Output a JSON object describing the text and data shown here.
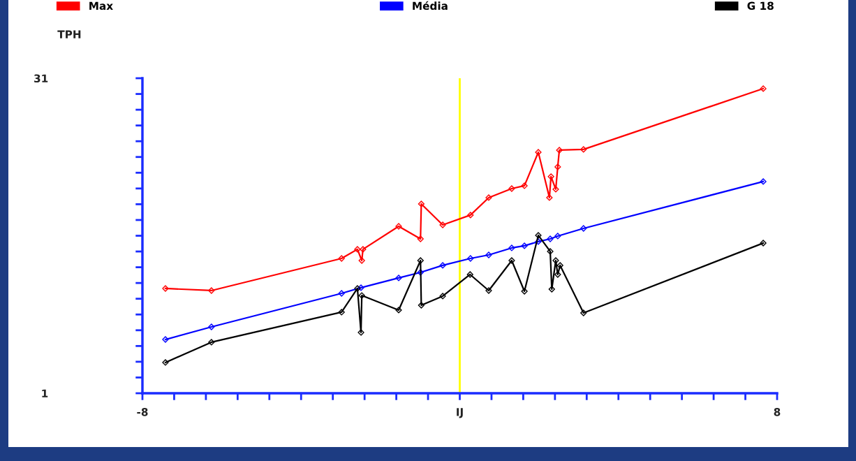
{
  "chart_data": {
    "type": "line",
    "ylabel": "TPH",
    "legend": "top",
    "marker": "diamond",
    "line_style": "solid",
    "grid": false,
    "xlim": [
      -8,
      8
    ],
    "xticks": [
      {
        "value": -8,
        "label": "-8"
      },
      {
        "value": -7.2,
        "label": null
      },
      {
        "value": -6.4,
        "label": null
      },
      {
        "value": -5.6,
        "label": null
      },
      {
        "value": -4.8,
        "label": null
      },
      {
        "value": -4,
        "label": null
      },
      {
        "value": -3.2,
        "label": null
      },
      {
        "value": -2.4,
        "label": null
      },
      {
        "value": -1.6,
        "label": null
      },
      {
        "value": -0.8,
        "label": null
      },
      {
        "value": 0,
        "label": "IJ"
      },
      {
        "value": 0.8,
        "label": null
      },
      {
        "value": 1.6,
        "label": null
      },
      {
        "value": 2.4,
        "label": null
      },
      {
        "value": 3.2,
        "label": null
      },
      {
        "value": 4,
        "label": null
      },
      {
        "value": 4.8,
        "label": null
      },
      {
        "value": 5.6,
        "label": null
      },
      {
        "value": 6.4,
        "label": null
      },
      {
        "value": 7.2,
        "label": null
      },
      {
        "value": 8,
        "label": "8"
      }
    ],
    "ylim": [
      1,
      31
    ],
    "yticks": [
      1,
      {
        "value": 2.5,
        "label": null
      },
      {
        "value": 4,
        "label": null
      },
      {
        "value": 5.5,
        "label": null
      },
      {
        "value": 7,
        "label": null
      },
      {
        "value": 8.5,
        "label": null
      },
      {
        "value": 10,
        "label": null
      },
      {
        "value": 11.5,
        "label": null
      },
      {
        "value": 13,
        "label": null
      },
      {
        "value": 14.5,
        "label": null
      },
      {
        "value": 16,
        "label": null
      },
      {
        "value": 17.5,
        "label": null
      },
      {
        "value": 19,
        "label": null
      },
      {
        "value": 20.5,
        "label": null
      },
      {
        "value": 22,
        "label": null
      },
      {
        "value": 23.5,
        "label": null
      },
      {
        "value": 25,
        "label": null
      },
      {
        "value": 26.5,
        "label": null
      },
      {
        "value": 28,
        "label": null
      },
      {
        "value": 29.5,
        "label": null
      },
      31
    ],
    "ref_lines": [
      {
        "axis": "x",
        "value": 0,
        "color": "#ffff00"
      }
    ],
    "series": [
      {
        "name": "Max",
        "color": "#ff0000",
        "x": [
          -7.42,
          -6.26,
          -2.98,
          -2.58,
          -2.47,
          -2.44,
          -1.54,
          -0.99,
          -0.97,
          -0.43,
          0.27,
          0.73,
          1.31,
          1.63,
          1.98,
          2.26,
          2.3,
          2.42,
          2.47,
          2.51,
          3.12,
          7.65
        ],
        "values": [
          10.98,
          10.78,
          13.84,
          14.71,
          13.64,
          14.71,
          16.9,
          15.7,
          19.03,
          17.03,
          17.97,
          19.63,
          20.49,
          20.76,
          23.95,
          19.63,
          21.63,
          20.43,
          22.56,
          24.15,
          24.22,
          30.01
        ]
      },
      {
        "name": "Média",
        "color": "#0000ff",
        "x": [
          -7.42,
          -6.26,
          -2.98,
          -2.49,
          -1.54,
          -0.99,
          -0.43,
          0.27,
          0.73,
          1.31,
          1.63,
          1.98,
          2.28,
          2.47,
          3.12,
          7.65
        ],
        "values": [
          6.12,
          7.32,
          10.51,
          11.05,
          11.98,
          12.51,
          13.18,
          13.84,
          14.17,
          14.84,
          15.04,
          15.44,
          15.7,
          15.97,
          16.7,
          21.16
        ]
      },
      {
        "name": "G 18",
        "color": "#000000",
        "x": [
          -7.42,
          -6.26,
          -2.98,
          -2.58,
          -2.49,
          -2.47,
          -1.54,
          -0.99,
          -0.97,
          -0.43,
          0.26,
          0.73,
          1.31,
          1.63,
          1.98,
          2.28,
          2.32,
          2.42,
          2.47,
          2.53,
          3.12,
          7.65
        ],
        "values": [
          3.93,
          5.86,
          8.72,
          10.98,
          6.79,
          10.31,
          8.92,
          13.64,
          9.38,
          10.25,
          12.31,
          10.78,
          13.64,
          10.71,
          16.04,
          14.51,
          10.91,
          13.64,
          12.31,
          13.18,
          8.65,
          15.3
        ]
      }
    ]
  }
}
